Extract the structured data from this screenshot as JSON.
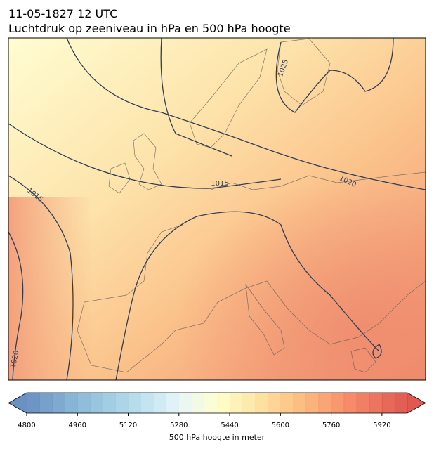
{
  "header": {
    "title": "11-05-1827 12 UTC",
    "subtitle": "Luchtdruk op zeeniveau in hPa en 500 hPa hoogte"
  },
  "map": {
    "contour_labels": [
      "1025",
      "1015",
      "1015",
      "1020",
      "1020"
    ]
  },
  "colorbar": {
    "range": [
      4800,
      6000
    ],
    "step": 40,
    "ticks": [
      4800,
      4960,
      5120,
      5280,
      5440,
      5600,
      5760,
      5920
    ],
    "label": "500 hPa hoogte in meter"
  }
}
